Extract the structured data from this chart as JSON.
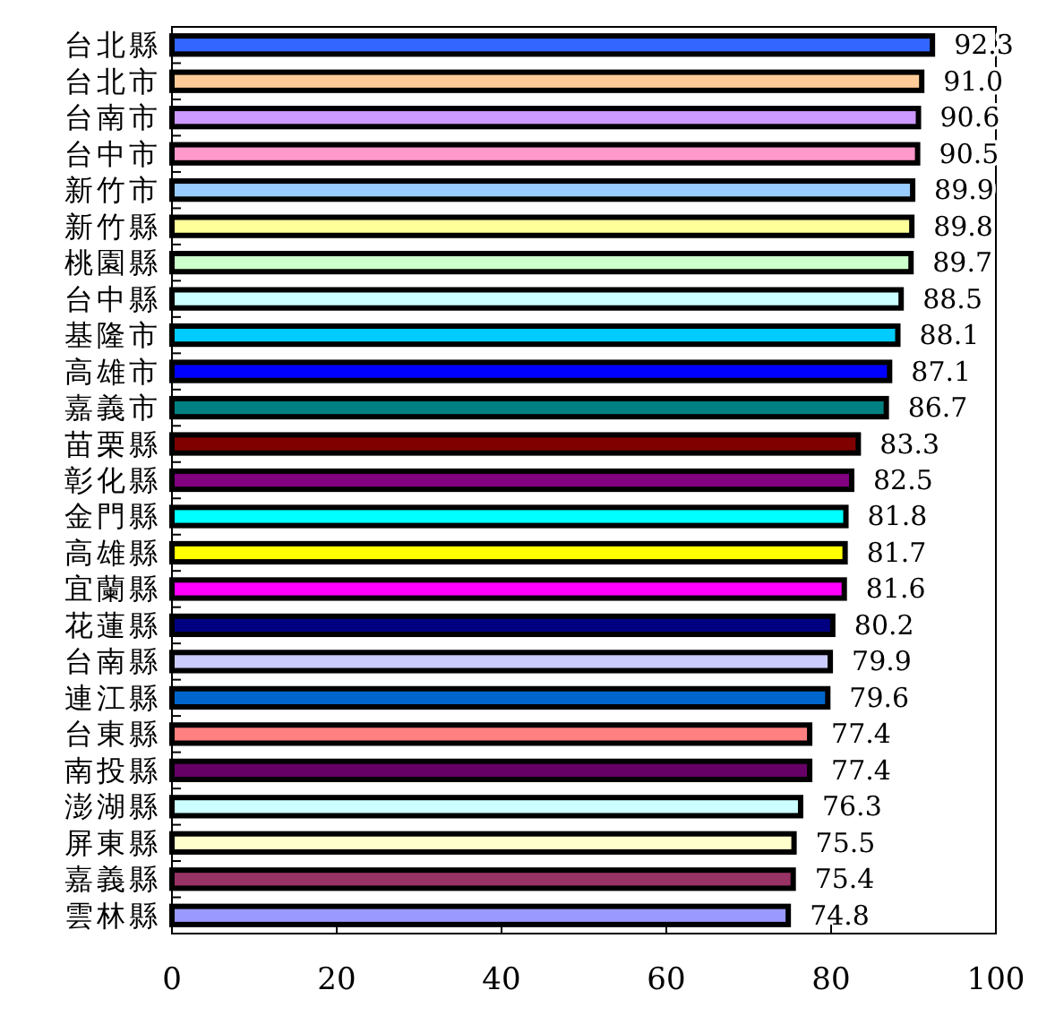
{
  "chart_data": {
    "type": "bar",
    "orientation": "horizontal",
    "categories": [
      "台北縣",
      "台北市",
      "台南市",
      "台中市",
      "新竹市",
      "新竹縣",
      "桃園縣",
      "台中縣",
      "基隆市",
      "高雄市",
      "嘉義市",
      "苗栗縣",
      "彰化縣",
      "金門縣",
      "高雄縣",
      "宜蘭縣",
      "花蓮縣",
      "台南縣",
      "連江縣",
      "台東縣",
      "南投縣",
      "澎湖縣",
      "屏東縣",
      "嘉義縣",
      "雲林縣"
    ],
    "values": [
      92.3,
      91.0,
      90.6,
      90.5,
      89.9,
      89.8,
      89.7,
      88.5,
      88.1,
      87.1,
      86.7,
      83.3,
      82.5,
      81.8,
      81.7,
      81.6,
      80.2,
      79.9,
      79.6,
      77.4,
      77.4,
      76.3,
      75.5,
      75.4,
      74.8
    ],
    "colors": [
      "#3366ff",
      "#ffcc99",
      "#cc99ff",
      "#ff99cc",
      "#99ccff",
      "#ffff99",
      "#ccffcc",
      "#ccffff",
      "#00ccff",
      "#0000ff",
      "#008080",
      "#800000",
      "#800080",
      "#00ffff",
      "#ffff00",
      "#ff00ff",
      "#000080",
      "#ccccff",
      "#0066cc",
      "#ff8080",
      "#660066",
      "#ccffff",
      "#ffffcc",
      "#993366",
      "#9999ff"
    ],
    "value_labels": [
      "92.3",
      "91.0",
      "90.6",
      "90.5",
      "89.9",
      "89.8",
      "89.7",
      "88.5",
      "88.1",
      "87.1",
      "86.7",
      "83.3",
      "82.5",
      "81.8",
      "81.7",
      "81.6",
      "80.2",
      "79.9",
      "79.6",
      "77.4",
      "77.4",
      "76.3",
      "75.5",
      "75.4",
      "74.8"
    ],
    "xlim": [
      0,
      100
    ],
    "xticks": [
      0,
      20,
      40,
      60,
      80,
      100
    ],
    "grid": false
  }
}
